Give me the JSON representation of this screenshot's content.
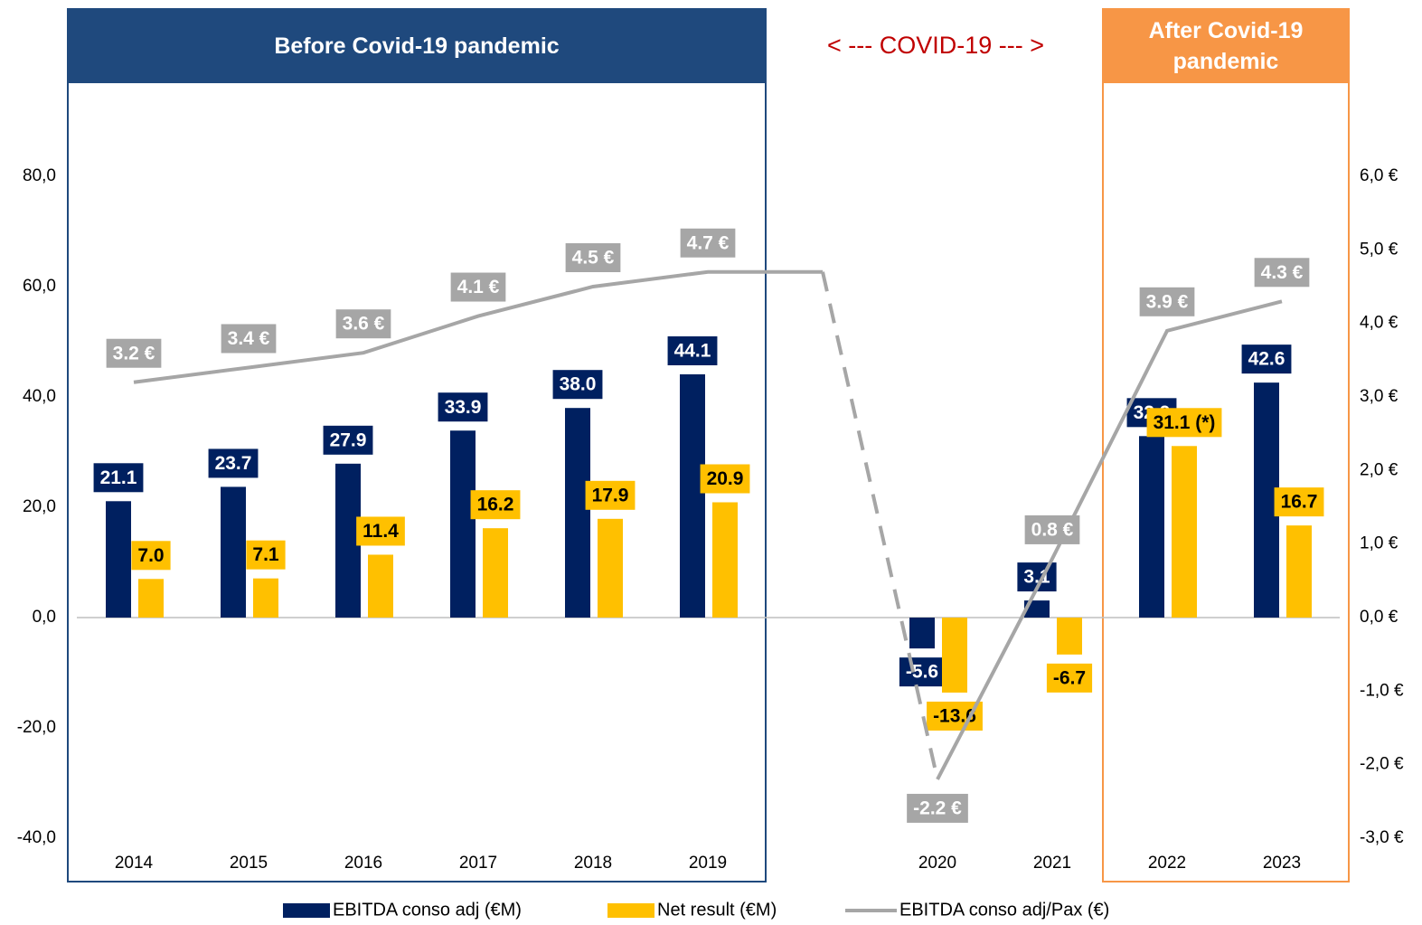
{
  "chart_data": {
    "type": "bar",
    "categories": [
      "2014",
      "2015",
      "2016",
      "2017",
      "2018",
      "2019",
      null,
      "2020",
      "2021",
      "2022",
      "2023"
    ],
    "series": [
      {
        "name": "EBITDA conso adj (€M)",
        "type": "bar",
        "color": "#002060",
        "values": [
          21.1,
          23.7,
          27.9,
          33.9,
          38.0,
          44.1,
          null,
          -5.6,
          3.1,
          32.9,
          42.6
        ],
        "value_labels": [
          "21.1",
          "23.7",
          "27.9",
          "33.9",
          "38.0",
          "44.1",
          null,
          "-5.6",
          "3.1",
          "32.9",
          "42.6"
        ]
      },
      {
        "name": "Net result (€M)",
        "type": "bar",
        "color": "#FFC000",
        "values": [
          7.0,
          7.1,
          11.4,
          16.2,
          17.9,
          20.9,
          null,
          -13.6,
          -6.7,
          31.1,
          16.7
        ],
        "value_labels": [
          "7.0",
          "7.1",
          "11.4",
          "16.2",
          "17.9",
          "20.9",
          null,
          "-13.6",
          "-6.7",
          "31.1 (*)",
          "16.7"
        ]
      },
      {
        "name": "EBITDA conso adj/Pax (€)",
        "type": "line",
        "axis": "y2",
        "color": "#A6A6A6",
        "values": [
          3.2,
          3.4,
          3.6,
          4.1,
          4.5,
          4.7,
          4.7,
          -2.2,
          0.8,
          3.9,
          4.3
        ],
        "value_labels": [
          "3.2 €",
          "3.4 €",
          "3.6 €",
          "4.1 €",
          "4.5 €",
          "4.7 €",
          null,
          "-2.2 €",
          "0.8 €",
          "3.9 €",
          "4.3 €"
        ],
        "dashed_segments": [
          [
            6,
            7
          ]
        ]
      }
    ],
    "ylim": [
      -40,
      80
    ],
    "yticks": [
      {
        "value": -40,
        "label": "-40,0"
      },
      {
        "value": -20,
        "label": "-20,0"
      },
      {
        "value": 0,
        "label": "0,0"
      },
      {
        "value": 20,
        "label": "20,0"
      },
      {
        "value": 40,
        "label": "40,0"
      },
      {
        "value": 60,
        "label": "60,0"
      },
      {
        "value": 80,
        "label": "80,0"
      }
    ],
    "y2lim": [
      -3,
      6
    ],
    "y2ticks": [
      {
        "value": -3,
        "label": "-3,0 €"
      },
      {
        "value": -2,
        "label": "-2,0 €"
      },
      {
        "value": -1,
        "label": "-1,0 €"
      },
      {
        "value": 0,
        "label": "0,0 €"
      },
      {
        "value": 1,
        "label": "1,0 €"
      },
      {
        "value": 2,
        "label": "2,0 €"
      },
      {
        "value": 3,
        "label": "3,0 €"
      },
      {
        "value": 4,
        "label": "4,0 €"
      },
      {
        "value": 5,
        "label": "5,0 €"
      },
      {
        "value": 6,
        "label": "6,0 €"
      }
    ],
    "grid": false,
    "legend": "bottom",
    "annotations": [
      "Before Covid-19 pandemic",
      "< --- COVID-19 --- >",
      "After Covid-19 pandemic"
    ]
  }
}
